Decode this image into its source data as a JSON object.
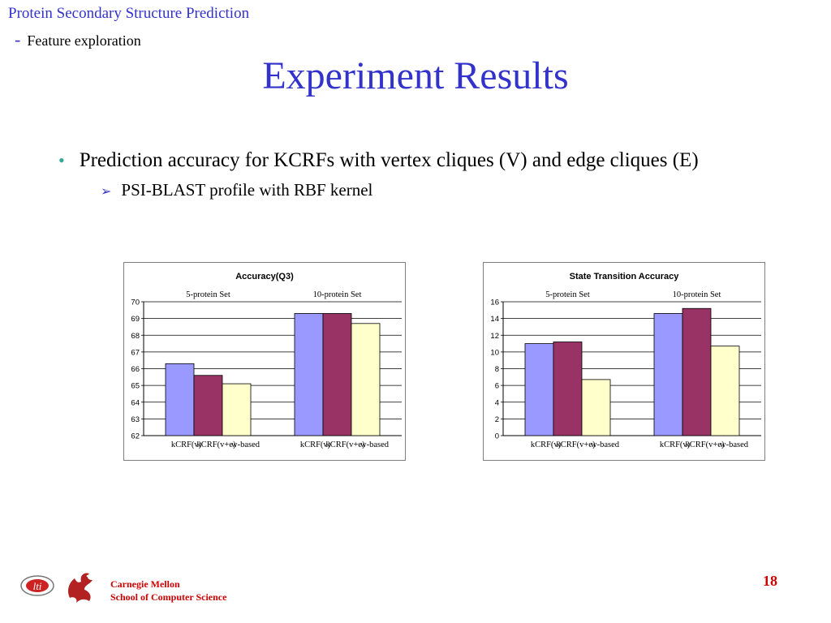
{
  "header": {
    "line1": "Protein Secondary Structure Prediction",
    "dash": "-",
    "line2": "Feature exploration"
  },
  "title": "Experiment Results",
  "bullets": {
    "main": "Prediction accuracy for KCRFs with vertex cliques (V) and edge cliques (E)",
    "sub": "PSI-BLAST profile with RBF kernel"
  },
  "colors": {
    "accent": "#3333cc",
    "series": [
      "#9999ff",
      "#993366",
      "#ffffcc"
    ]
  },
  "chart_data": [
    {
      "type": "bar",
      "title": "Accuracy(Q3)",
      "groups": [
        "5-protein Set",
        "10-protein Set"
      ],
      "categories": [
        "kCRF(v)",
        "kCRF(v+e)",
        "w-based"
      ],
      "series": [
        {
          "group": "5-protein Set",
          "values": [
            66.3,
            65.6,
            65.1
          ]
        },
        {
          "group": "10-protein Set",
          "values": [
            69.3,
            69.3,
            68.7
          ]
        }
      ],
      "ylim": [
        62,
        70
      ],
      "yticks": [
        "62",
        "63",
        "64",
        "65",
        "66",
        "67",
        "68",
        "69",
        "70"
      ],
      "grid": true
    },
    {
      "type": "bar",
      "title": "State Transition Accuracy",
      "groups": [
        "5-protein Set",
        "10-protein Set"
      ],
      "categories": [
        "kCRF(v)",
        "kCRF(v+e)",
        "w-based"
      ],
      "series": [
        {
          "group": "5-protein Set",
          "values": [
            11.0,
            11.2,
            6.7
          ]
        },
        {
          "group": "10-protein Set",
          "values": [
            14.6,
            15.2,
            10.7
          ]
        }
      ],
      "ylim": [
        0,
        16
      ],
      "yticks": [
        "0",
        "2",
        "4",
        "6",
        "8",
        "10",
        "12",
        "14",
        "16"
      ],
      "grid": true
    }
  ],
  "footer": {
    "org_line1": "Carnegie Mellon",
    "org_line2": "School of Computer Science",
    "logo_text": "lti",
    "page_number": "18"
  }
}
